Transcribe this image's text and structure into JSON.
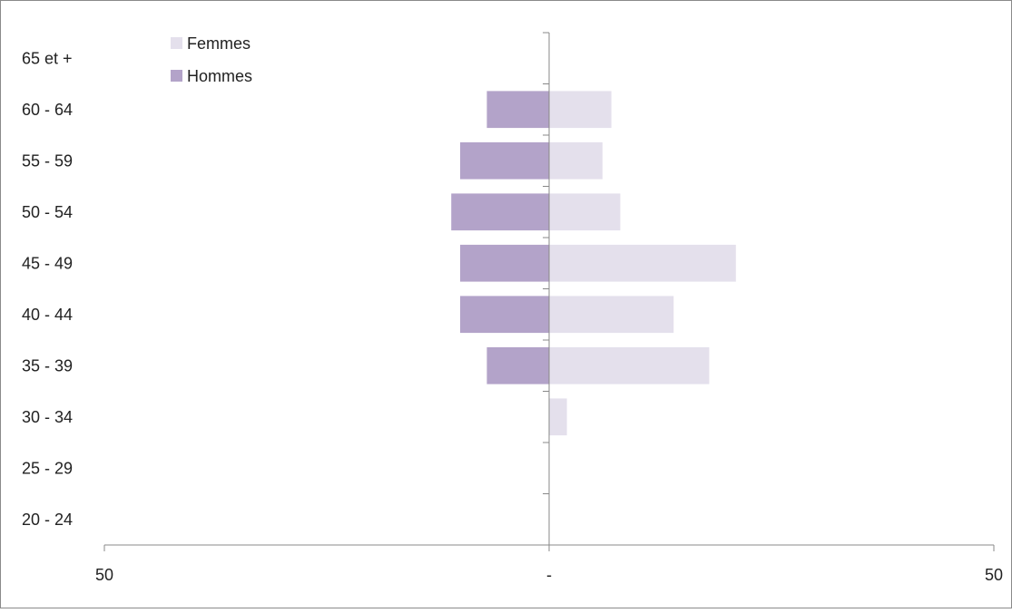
{
  "chart_data": {
    "type": "bar",
    "orientation": "horizontal",
    "chart_style": "population-pyramid",
    "categories": [
      "20 - 24",
      "25 - 29",
      "30 - 34",
      "35 - 39",
      "40 - 44",
      "45 - 49",
      "50 - 54",
      "55 - 59",
      "60 - 64",
      "65 et +"
    ],
    "series": [
      {
        "name": "Femmes",
        "color": "#e4e0ec",
        "side": "right",
        "values": [
          0,
          0,
          2,
          18,
          14,
          21,
          8,
          6,
          7,
          0
        ]
      },
      {
        "name": "Hommes",
        "color": "#b3a3c9",
        "side": "left",
        "values": [
          0,
          0,
          0,
          7,
          10,
          10,
          11,
          10,
          7,
          0
        ]
      }
    ],
    "xlim": [
      -50,
      50
    ],
    "x_tick_labels": [
      "50",
      "-",
      "50"
    ],
    "title": "",
    "xlabel": "",
    "ylabel": "",
    "legend_position": "top-left",
    "grid": false
  },
  "colors": {
    "axis": "#888888",
    "frame": "#8a8a8a"
  }
}
